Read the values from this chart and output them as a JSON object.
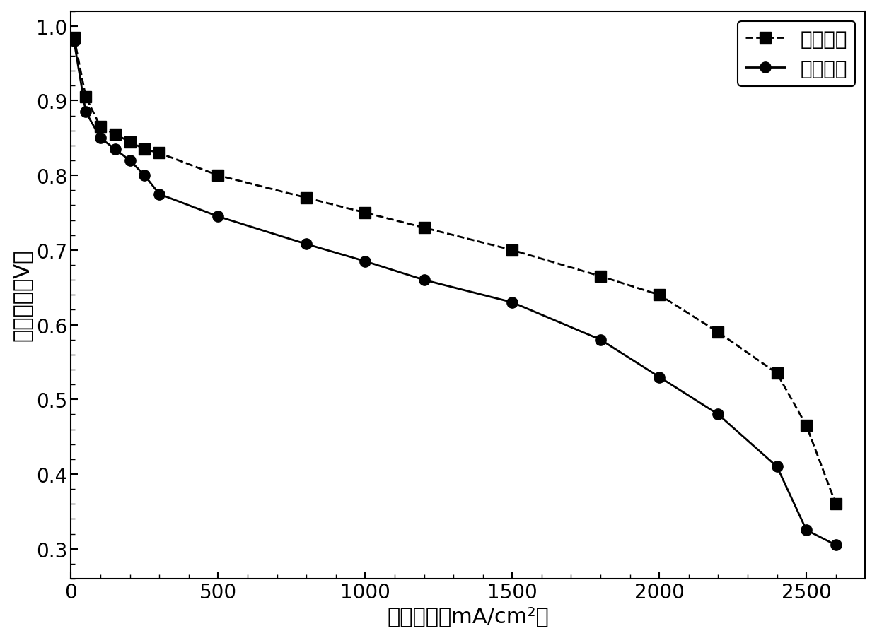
{
  "series1_label": "两个涂头",
  "series2_label": "单个涂头",
  "series1_x": [
    10,
    50,
    100,
    150,
    200,
    250,
    300,
    500,
    800,
    1000,
    1200,
    1500,
    1800,
    2000,
    2200,
    2400,
    2500,
    2600
  ],
  "series1_y": [
    0.985,
    0.905,
    0.865,
    0.855,
    0.845,
    0.835,
    0.83,
    0.8,
    0.77,
    0.75,
    0.73,
    0.7,
    0.665,
    0.64,
    0.59,
    0.535,
    0.465,
    0.36
  ],
  "series2_x": [
    10,
    50,
    100,
    150,
    200,
    250,
    300,
    500,
    800,
    1000,
    1200,
    1500,
    1800,
    2000,
    2200,
    2400,
    2500,
    2600
  ],
  "series2_y": [
    0.98,
    0.885,
    0.85,
    0.835,
    0.82,
    0.8,
    0.775,
    0.745,
    0.708,
    0.685,
    0.66,
    0.63,
    0.58,
    0.53,
    0.48,
    0.41,
    0.325,
    0.305
  ],
  "xlabel": "电流密度（mA/cm²）",
  "ylabel": "电池电压（V）",
  "xlim": [
    0,
    2700
  ],
  "ylim": [
    0.26,
    1.02
  ],
  "xticks": [
    0,
    500,
    1000,
    1500,
    2000,
    2500
  ],
  "yticks": [
    0.3,
    0.4,
    0.5,
    0.6,
    0.7,
    0.8,
    0.9,
    1.0
  ],
  "line_color": "#000000",
  "marker_size": 11,
  "line_width": 2.0,
  "font_size_label": 22,
  "font_size_tick": 20,
  "font_size_legend": 20
}
